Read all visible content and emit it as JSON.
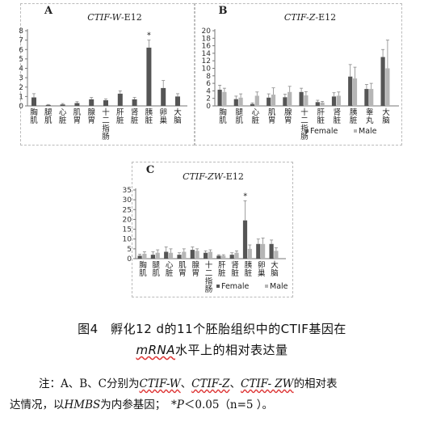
{
  "chart_data": [
    {
      "type": "bar",
      "panel": "A",
      "title_main": "CTIF-W",
      "title_suffix": "-E12",
      "categories": [
        "胸肌",
        "腿肌",
        "心脏",
        "肌胃",
        "腺胃",
        "十二指肠",
        "肝脏",
        "肾脏",
        "胰脏",
        "卵巢",
        "大脑"
      ],
      "ylim": [
        0,
        8
      ],
      "yticks": [
        0,
        1,
        2,
        3,
        4,
        5,
        6,
        7,
        8
      ],
      "series": [
        {
          "values": [
            0.9,
            0.1,
            0.15,
            0.3,
            0.7,
            0.6,
            1.3,
            0.7,
            6.2,
            1.9,
            1.0
          ],
          "errors": [
            0.4,
            0.05,
            0.1,
            0.15,
            0.2,
            0.15,
            0.3,
            0.2,
            0.8,
            0.8,
            0.3
          ],
          "color": "#555555"
        }
      ],
      "significance": [
        {
          "category": "胰脏",
          "mark": "*"
        }
      ]
    },
    {
      "type": "bar",
      "panel": "B",
      "title_main": "CTIF-Z",
      "title_suffix": "-E12",
      "categories": [
        "胸肌",
        "腿肌",
        "心脏",
        "肌胃",
        "腺胃",
        "十二指肠",
        "肝脏",
        "肾脏",
        "胰脏",
        "睾丸",
        "大脑"
      ],
      "ylim": [
        0,
        20
      ],
      "yticks": [
        0,
        2,
        4,
        6,
        8,
        10,
        12,
        14,
        16,
        18,
        20
      ],
      "series": [
        {
          "name": "Female",
          "values": [
            4.3,
            1.8,
            0.5,
            2.2,
            2.3,
            3.7,
            1.0,
            2.5,
            7.8,
            4.5,
            13.0
          ],
          "errors": [
            1.2,
            0.8,
            0.3,
            1.0,
            0.8,
            1.0,
            0.5,
            1.0,
            3.2,
            1.2,
            2.0
          ],
          "color": "#555555"
        },
        {
          "name": "Male",
          "values": [
            3.7,
            2.2,
            2.7,
            3.0,
            3.7,
            2.8,
            0.9,
            2.7,
            7.3,
            4.5,
            10.0
          ],
          "errors": [
            1.0,
            1.0,
            1.0,
            1.8,
            1.5,
            1.0,
            0.3,
            1.0,
            3.0,
            1.5,
            7.5
          ],
          "color": "#b5b5b5"
        }
      ],
      "legend": "bottom"
    },
    {
      "type": "bar",
      "panel": "C",
      "title_main": "CTIF-ZW",
      "title_suffix": "-E12",
      "categories": [
        "胸肌",
        "腿肌",
        "心脏",
        "肌胃",
        "腺胃",
        "十二指肠",
        "肝脏",
        "肾脏",
        "胰脏",
        "卵巢",
        "大脑"
      ],
      "ylim": [
        0,
        35
      ],
      "yticks": [
        0,
        5,
        10,
        15,
        20,
        25,
        30,
        35
      ],
      "series": [
        {
          "name": "Female",
          "values": [
            1.5,
            2.0,
            3.5,
            2.0,
            4.5,
            3.0,
            1.5,
            2.0,
            19.5,
            7.5,
            7.5
          ],
          "errors": [
            0.8,
            1.5,
            2.5,
            1.0,
            1.5,
            1.0,
            0.5,
            1.0,
            10.0,
            2.5,
            2.0
          ],
          "color": "#555555"
        },
        {
          "name": "Male",
          "values": [
            2.5,
            3.0,
            3.0,
            3.5,
            4.0,
            3.5,
            1.5,
            3.0,
            5.0,
            7.5,
            4.0
          ],
          "errors": [
            1.0,
            1.5,
            2.0,
            1.5,
            1.0,
            1.0,
            0.5,
            1.0,
            2.0,
            3.0,
            1.5
          ],
          "color": "#b5b5b5"
        }
      ],
      "legend": "bottom",
      "significance": [
        {
          "category": "胰脏",
          "mark": "*"
        }
      ]
    }
  ],
  "caption": {
    "line1": "图4　孵化12 d的11个胚胎组织中的CTIF基因在",
    "line2_italic": "mRNA",
    "line2_rest": "水平上的相对表达量"
  },
  "note": {
    "prefix": "注：A、B、C分别为",
    "g1": "CTIF-W",
    "sep1": "、",
    "g2": "CTIF-Z",
    "sep2": "、",
    "g3": "CTIF- ZW",
    "suffix": "的相对表",
    "line2_a": "达情况，以",
    "ref_gene": "HMBS",
    "line2_b": "为内参基因；　*",
    "p": "P",
    "line2_c": "＜0.05（n=5 ）。"
  }
}
